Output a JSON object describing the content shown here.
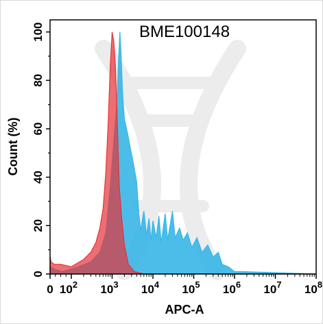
{
  "chart_data": {
    "type": "area",
    "title": "BME100148",
    "xlabel": "APC-A",
    "ylabel": "Count  (%)",
    "x_scale": "log",
    "ylim": [
      0,
      105
    ],
    "x_ticks": [
      {
        "base": "0",
        "exp": ""
      },
      {
        "base": "10",
        "exp": "2"
      },
      {
        "base": "10",
        "exp": "3"
      },
      {
        "base": "10",
        "exp": "4"
      },
      {
        "base": "10",
        "exp": "5"
      },
      {
        "base": "10",
        "exp": "6"
      },
      {
        "base": "10",
        "exp": "7"
      },
      {
        "base": "10",
        "exp": "8"
      }
    ],
    "y_ticks": [
      "0",
      "20",
      "40",
      "60",
      "80",
      "100"
    ],
    "series": [
      {
        "color": "#38b6e6",
        "points": [
          [
            1,
            3
          ],
          [
            20,
            2
          ],
          [
            60,
            1
          ],
          [
            150,
            3
          ],
          [
            300,
            5
          ],
          [
            500,
            9
          ],
          [
            700,
            17
          ],
          [
            900,
            36
          ],
          [
            1100,
            55
          ],
          [
            1300,
            70
          ],
          [
            1450,
            90
          ],
          [
            1550,
            100
          ],
          [
            1650,
            92
          ],
          [
            1800,
            75
          ],
          [
            2000,
            64
          ],
          [
            2400,
            58
          ],
          [
            2800,
            52
          ],
          [
            3300,
            46
          ],
          [
            4000,
            38
          ],
          [
            4500,
            25
          ],
          [
            5000,
            18
          ],
          [
            6000,
            26
          ],
          [
            7000,
            16
          ],
          [
            8000,
            23
          ],
          [
            9000,
            14
          ],
          [
            10000,
            22
          ],
          [
            12000,
            15
          ],
          [
            14000,
            24
          ],
          [
            16000,
            13
          ],
          [
            20000,
            25
          ],
          [
            23000,
            14
          ],
          [
            30000,
            26
          ],
          [
            35000,
            15
          ],
          [
            45000,
            19
          ],
          [
            55000,
            14
          ],
          [
            70000,
            17
          ],
          [
            90000,
            11
          ],
          [
            120000,
            15
          ],
          [
            160000,
            9
          ],
          [
            220000,
            12
          ],
          [
            300000,
            7
          ],
          [
            400000,
            9
          ],
          [
            500000,
            4
          ],
          [
            700000,
            3
          ],
          [
            1000000,
            1
          ],
          [
            1600000,
            1
          ],
          [
            100000000,
            0
          ]
        ]
      },
      {
        "color": "#e63238",
        "points": [
          [
            1,
            7
          ],
          [
            5,
            5
          ],
          [
            20,
            4
          ],
          [
            50,
            4
          ],
          [
            100,
            3
          ],
          [
            200,
            6
          ],
          [
            300,
            9
          ],
          [
            400,
            13
          ],
          [
            500,
            19
          ],
          [
            600,
            27
          ],
          [
            700,
            42
          ],
          [
            800,
            62
          ],
          [
            900,
            86
          ],
          [
            1000,
            100
          ],
          [
            1100,
            96
          ],
          [
            1200,
            86
          ],
          [
            1300,
            70
          ],
          [
            1400,
            52
          ],
          [
            1500,
            36
          ],
          [
            1700,
            24
          ],
          [
            2000,
            12
          ],
          [
            2500,
            4
          ],
          [
            3500,
            1
          ],
          [
            6000,
            0
          ],
          [
            100000000,
            0
          ]
        ]
      }
    ]
  }
}
